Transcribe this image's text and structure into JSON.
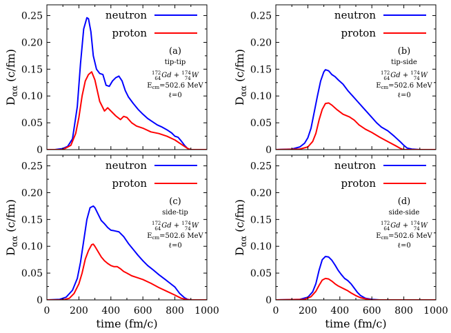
{
  "colors": {
    "neutron": "#0000ff",
    "proton": "#ff0000"
  },
  "x_axis_label": "time (fm/c)",
  "y_axis_label_main": "D",
  "y_axis_label_sub": "αα",
  "y_axis_label_unit": " (c/fm)",
  "chart_data": [
    {
      "type": "line",
      "panel": "(a)",
      "config": "tip-tip",
      "reaction": {
        "A1": "172",
        "Z1": "64",
        "el1": "Gd",
        "A2": "174",
        "Z2": "74",
        "el2": "W"
      },
      "energy": "=502.6 MeV",
      "energy_prefix": "E",
      "energy_sub": "cm",
      "ell": "ℓ=0",
      "xlim": [
        0,
        1000
      ],
      "ylim": [
        0,
        0.27
      ],
      "xticks": [
        0,
        200,
        400,
        600,
        800,
        1000
      ],
      "yticks": [
        "0",
        "0.05",
        "0.10",
        "0.15",
        "0.20",
        "0.25"
      ],
      "legend": "top-right",
      "series": [
        {
          "name": "neutron",
          "color": "#0000ff",
          "x": [
            0,
            50,
            100,
            130,
            160,
            190,
            210,
            230,
            250,
            260,
            275,
            290,
            310,
            330,
            350,
            370,
            390,
            410,
            430,
            450,
            470,
            490,
            510,
            540,
            570,
            600,
            630,
            660,
            690,
            720,
            750,
            780,
            800,
            820,
            840,
            860,
            880,
            900,
            950,
            1000
          ],
          "y": [
            0,
            0,
            0.002,
            0.006,
            0.02,
            0.08,
            0.16,
            0.225,
            0.246,
            0.244,
            0.22,
            0.175,
            0.15,
            0.142,
            0.14,
            0.12,
            0.118,
            0.128,
            0.134,
            0.137,
            0.128,
            0.11,
            0.098,
            0.086,
            0.075,
            0.066,
            0.058,
            0.052,
            0.046,
            0.042,
            0.037,
            0.031,
            0.025,
            0.023,
            0.016,
            0.008,
            0.002,
            0,
            0,
            0
          ]
        },
        {
          "name": "proton",
          "color": "#ff0000",
          "x": [
            0,
            100,
            150,
            180,
            200,
            220,
            240,
            260,
            280,
            300,
            330,
            360,
            380,
            400,
            430,
            460,
            480,
            500,
            530,
            560,
            600,
            650,
            700,
            750,
            800,
            850,
            880,
            900,
            1000
          ],
          "y": [
            0,
            0,
            0.008,
            0.03,
            0.06,
            0.1,
            0.128,
            0.14,
            0.145,
            0.13,
            0.09,
            0.072,
            0.078,
            0.072,
            0.063,
            0.056,
            0.062,
            0.06,
            0.05,
            0.044,
            0.04,
            0.033,
            0.03,
            0.025,
            0.018,
            0.008,
            0.002,
            0,
            0
          ]
        }
      ]
    },
    {
      "type": "line",
      "panel": "(b)",
      "config": "tip-side",
      "reaction": {
        "A1": "172",
        "Z1": "64",
        "el1": "Gd",
        "A2": "174",
        "Z2": "74",
        "el2": "W"
      },
      "energy": "=502.6 MeV",
      "energy_prefix": "E",
      "energy_sub": "cm",
      "ell": "ℓ=0",
      "xlim": [
        0,
        1000
      ],
      "ylim": [
        0,
        0.27
      ],
      "xticks": [
        0,
        200,
        400,
        600,
        800,
        1000
      ],
      "yticks": [
        "0",
        "0.05",
        "0.10",
        "0.15",
        "0.20",
        "0.25"
      ],
      "legend": "top-right",
      "series": [
        {
          "name": "neutron",
          "color": "#0000ff",
          "x": [
            0,
            100,
            150,
            180,
            200,
            220,
            240,
            260,
            280,
            300,
            310,
            330,
            350,
            370,
            390,
            420,
            450,
            480,
            510,
            540,
            570,
            600,
            630,
            660,
            700,
            740,
            780,
            800,
            820,
            850,
            900,
            1000
          ],
          "y": [
            0,
            0.001,
            0.005,
            0.012,
            0.022,
            0.04,
            0.07,
            0.1,
            0.128,
            0.145,
            0.149,
            0.147,
            0.14,
            0.136,
            0.13,
            0.122,
            0.11,
            0.1,
            0.09,
            0.08,
            0.07,
            0.06,
            0.05,
            0.042,
            0.035,
            0.025,
            0.014,
            0.008,
            0.003,
            0.001,
            0,
            0
          ]
        },
        {
          "name": "proton",
          "color": "#ff0000",
          "x": [
            0,
            150,
            200,
            230,
            250,
            270,
            290,
            310,
            330,
            350,
            380,
            420,
            460,
            490,
            520,
            560,
            600,
            650,
            700,
            750,
            780,
            800,
            1000
          ],
          "y": [
            0,
            0.001,
            0.005,
            0.015,
            0.03,
            0.055,
            0.075,
            0.086,
            0.087,
            0.083,
            0.075,
            0.066,
            0.061,
            0.055,
            0.046,
            0.038,
            0.032,
            0.023,
            0.015,
            0.007,
            0.002,
            0,
            0
          ]
        }
      ]
    },
    {
      "type": "line",
      "panel": "(c)",
      "config": "side-tip",
      "reaction": {
        "A1": "172",
        "Z1": "64",
        "el1": "Gd",
        "A2": "174",
        "Z2": "74",
        "el2": "W"
      },
      "energy": "=502.6 MeV",
      "energy_prefix": "E",
      "energy_sub": "cm",
      "ell": "ℓ=0",
      "xlim": [
        0,
        1000
      ],
      "ylim": [
        0,
        0.27
      ],
      "xticks": [
        0,
        200,
        400,
        600,
        800,
        1000
      ],
      "yticks": [
        "0",
        "0.05",
        "0.10",
        "0.15",
        "0.20",
        "0.25"
      ],
      "legend": "top-right",
      "series": [
        {
          "name": "neutron",
          "color": "#0000ff",
          "x": [
            0,
            80,
            120,
            160,
            190,
            210,
            230,
            250,
            270,
            290,
            300,
            320,
            340,
            360,
            380,
            400,
            420,
            450,
            480,
            510,
            540,
            570,
            600,
            630,
            660,
            700,
            740,
            770,
            800,
            830,
            860,
            880,
            900,
            950,
            1000
          ],
          "y": [
            0,
            0.001,
            0.005,
            0.018,
            0.04,
            0.07,
            0.11,
            0.15,
            0.172,
            0.175,
            0.172,
            0.16,
            0.148,
            0.142,
            0.135,
            0.13,
            0.129,
            0.127,
            0.118,
            0.105,
            0.094,
            0.083,
            0.073,
            0.064,
            0.057,
            0.047,
            0.038,
            0.031,
            0.024,
            0.012,
            0.004,
            0.001,
            0,
            0,
            0
          ]
        },
        {
          "name": "proton",
          "color": "#ff0000",
          "x": [
            0,
            100,
            140,
            170,
            200,
            220,
            240,
            260,
            280,
            290,
            300,
            320,
            340,
            360,
            380,
            400,
            420,
            440,
            460,
            480,
            500,
            530,
            560,
            600,
            650,
            700,
            750,
            800,
            840,
            870,
            900,
            1000
          ],
          "y": [
            0,
            0,
            0.003,
            0.012,
            0.03,
            0.05,
            0.076,
            0.092,
            0.103,
            0.104,
            0.1,
            0.09,
            0.08,
            0.073,
            0.068,
            0.064,
            0.062,
            0.062,
            0.058,
            0.053,
            0.05,
            0.045,
            0.042,
            0.038,
            0.031,
            0.023,
            0.016,
            0.009,
            0.003,
            0.001,
            0,
            0
          ]
        }
      ]
    },
    {
      "type": "line",
      "panel": "(d)",
      "config": "side-side",
      "reaction": {
        "A1": "172",
        "Z1": "64",
        "el1": "Gd",
        "A2": "174",
        "Z2": "74",
        "el2": "W"
      },
      "energy": "=502.6 MeV",
      "energy_prefix": "E",
      "energy_sub": "cm",
      "ell": "ℓ=0",
      "xlim": [
        0,
        1000
      ],
      "ylim": [
        0,
        0.27
      ],
      "xticks": [
        0,
        200,
        400,
        600,
        800,
        1000
      ],
      "yticks": [
        "0",
        "0.05",
        "0.10",
        "0.15",
        "0.20",
        "0.25"
      ],
      "legend": "top-right",
      "series": [
        {
          "name": "neutron",
          "color": "#0000ff",
          "x": [
            0,
            150,
            200,
            230,
            250,
            270,
            290,
            310,
            330,
            350,
            370,
            390,
            410,
            430,
            450,
            470,
            490,
            510,
            530,
            560,
            600,
            650,
            700,
            1000
          ],
          "y": [
            0,
            0.001,
            0.005,
            0.015,
            0.03,
            0.055,
            0.075,
            0.081,
            0.08,
            0.074,
            0.065,
            0.055,
            0.047,
            0.04,
            0.036,
            0.03,
            0.022,
            0.014,
            0.008,
            0.003,
            0.001,
            0,
            0,
            0
          ]
        },
        {
          "name": "proton",
          "color": "#ff0000",
          "x": [
            0,
            180,
            220,
            250,
            270,
            290,
            310,
            330,
            350,
            370,
            390,
            410,
            430,
            450,
            470,
            500,
            530,
            560,
            600,
            650,
            1000
          ],
          "y": [
            0,
            0.001,
            0.006,
            0.016,
            0.027,
            0.037,
            0.04,
            0.039,
            0.035,
            0.03,
            0.026,
            0.023,
            0.02,
            0.017,
            0.013,
            0.008,
            0.004,
            0.002,
            0,
            0,
            0
          ]
        }
      ]
    }
  ]
}
